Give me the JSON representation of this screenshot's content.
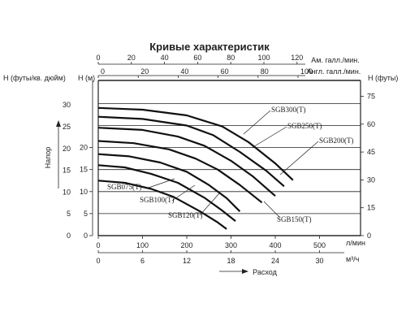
{
  "chart_data": {
    "type": "line",
    "title": "Кривые характеристик",
    "ylabel": "Напор",
    "xlabel": "Расход",
    "xlim": [
      0,
      450
    ],
    "ylim": [
      0,
      35
    ],
    "grid": true,
    "top_axes": [
      {
        "unit": "Ам. галл./мин.",
        "ticks": [
          "0",
          "20",
          "40",
          "60",
          "80",
          "100",
          "120"
        ]
      },
      {
        "unit": "Англ. галл./мин.",
        "ticks": [
          "0",
          "20",
          "40",
          "60",
          "80",
          "100"
        ]
      }
    ],
    "left_axes": [
      {
        "unit": "Н (футы/кв. дюйм)",
        "ticks": [
          "0",
          "5",
          "10",
          "15",
          "20",
          "25",
          "30"
        ]
      },
      {
        "unit": "Н (м)",
        "ticks": [
          "0",
          "5",
          "10",
          "15",
          "20"
        ]
      }
    ],
    "right_axis": {
      "unit": "Н (футы)",
      "ticks": [
        "0",
        "15",
        "30",
        "45",
        "60",
        "75"
      ]
    },
    "bottom_axes": [
      {
        "unit": "л/мин",
        "ticks": [
          "0",
          "100",
          "200",
          "300",
          "400",
          "500"
        ]
      },
      {
        "unit": "м³/ч",
        "ticks": [
          "0",
          "6",
          "12",
          "18",
          "24",
          "30"
        ]
      }
    ],
    "series": [
      {
        "name": "SGB075(T)",
        "x": [
          0,
          60,
          120,
          170,
          230,
          270,
          290
        ],
        "y": [
          12.5,
          12.0,
          10.6,
          8.8,
          5.5,
          3.0,
          1.5
        ]
      },
      {
        "name": "SGB100(T)",
        "x": [
          0,
          60,
          120,
          180,
          240,
          280,
          310
        ],
        "y": [
          16.0,
          15.5,
          14.0,
          12.0,
          8.6,
          5.7,
          3.3
        ]
      },
      {
        "name": "SGB120(T)",
        "x": [
          0,
          70,
          140,
          200,
          250,
          290,
          320
        ],
        "y": [
          18.5,
          18.0,
          16.6,
          14.5,
          11.5,
          8.5,
          5.5
        ]
      },
      {
        "name": "SGB150(T)",
        "x": [
          0,
          80,
          160,
          220,
          270,
          320,
          370
        ],
        "y": [
          21.5,
          21.0,
          19.6,
          17.5,
          15.0,
          11.5,
          7.5
        ]
      },
      {
        "name": "SGB200(T)",
        "x": [
          0,
          100,
          180,
          240,
          300,
          350,
          400
        ],
        "y": [
          24.5,
          24.0,
          22.5,
          20.4,
          17.0,
          13.4,
          9.0
        ]
      },
      {
        "name": "SGB250(T)",
        "x": [
          0,
          100,
          200,
          260,
          320,
          380,
          420
        ],
        "y": [
          27.0,
          26.5,
          25.0,
          22.8,
          19.0,
          14.7,
          11.2
        ]
      },
      {
        "name": "SGB300(T)",
        "x": [
          0,
          100,
          200,
          280,
          340,
          400,
          440
        ],
        "y": [
          29.0,
          28.6,
          27.3,
          24.8,
          21.2,
          16.4,
          12.6
        ]
      }
    ],
    "labels": [
      "SGB075(T)",
      "SGB100(T)",
      "SGB120(T)",
      "SGB150(T)",
      "SGB200(T)",
      "SGB250(T)",
      "SGB300(T)"
    ]
  }
}
